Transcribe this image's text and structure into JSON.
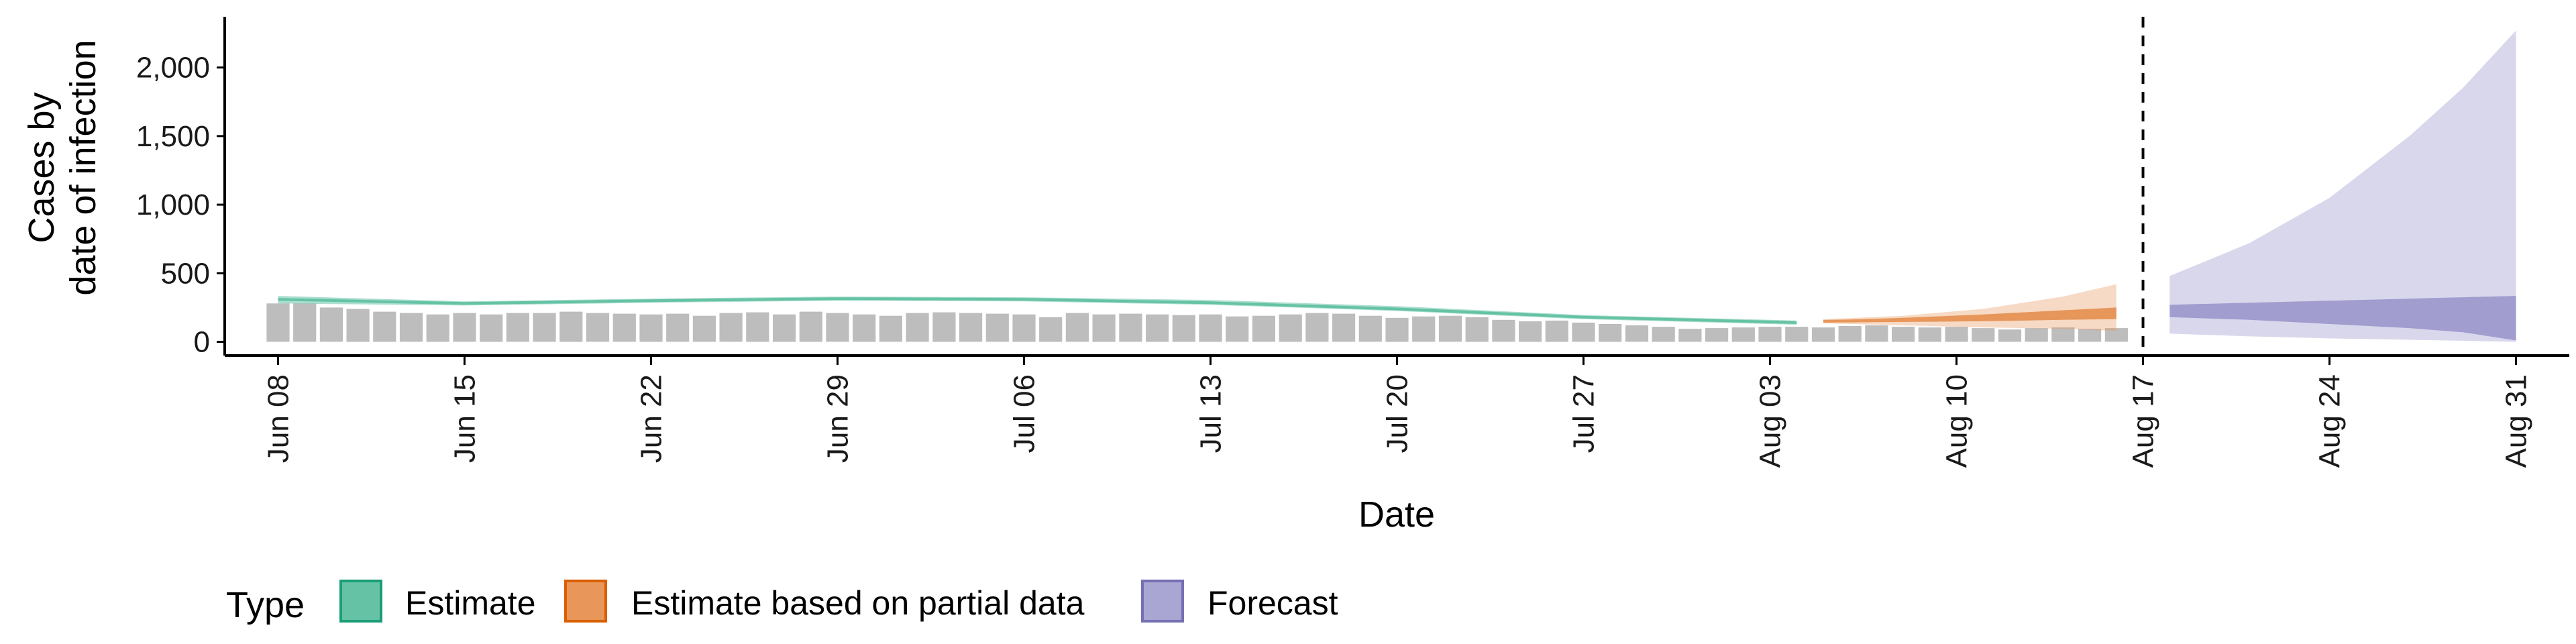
{
  "chart_data": {
    "type": "area",
    "xlabel": "Date",
    "ylabel_lines": [
      "Cases by",
      "date of infection"
    ],
    "x_ticks": [
      "Jun 08",
      "Jun 15",
      "Jun 22",
      "Jun 29",
      "Jul 06",
      "Jul 13",
      "Jul 20",
      "Jul 27",
      "Aug 03",
      "Aug 10",
      "Aug 17",
      "Aug 24",
      "Aug 31"
    ],
    "x_range": [
      "2020-06-06",
      "2020-09-02"
    ],
    "y_ticks": [
      "0",
      "500",
      "1,000",
      "1,500",
      "2,000"
    ],
    "ylim": [
      -100,
      2370
    ],
    "vline_date": "2020-08-17",
    "legend": {
      "title": "Type",
      "position": "bottom",
      "items": [
        {
          "label": "Estimate",
          "fill": "#66c2a5",
          "stroke": "#1b9e77"
        },
        {
          "label": "Estimate based on partial data",
          "fill": "#e9965a",
          "stroke": "#d95f02"
        },
        {
          "label": "Forecast",
          "fill": "#a9a6d4",
          "stroke": "#7570b3"
        }
      ]
    },
    "bars": {
      "color": "#bdbdbd",
      "start": "2020-06-08",
      "values": [
        280,
        280,
        250,
        240,
        220,
        210,
        200,
        210,
        200,
        210,
        210,
        220,
        210,
        205,
        200,
        205,
        190,
        210,
        215,
        200,
        220,
        210,
        200,
        190,
        210,
        215,
        210,
        205,
        200,
        180,
        210,
        200,
        205,
        200,
        195,
        200,
        185,
        190,
        200,
        210,
        205,
        190,
        175,
        185,
        190,
        180,
        160,
        150,
        155,
        140,
        130,
        120,
        110,
        95,
        100,
        105,
        110,
        110,
        105,
        115,
        120,
        110,
        105,
        110,
        100,
        90,
        100,
        105,
        95,
        100
      ]
    },
    "estimate": {
      "start": "2020-06-08",
      "end": "2020-08-04",
      "dates": [
        "2020-06-08",
        "2020-06-15",
        "2020-06-22",
        "2020-06-29",
        "2020-07-06",
        "2020-07-13",
        "2020-07-20",
        "2020-07-27",
        "2020-08-04"
      ],
      "median": [
        310,
        280,
        300,
        315,
        310,
        285,
        240,
        180,
        140
      ],
      "upper": [
        335,
        295,
        315,
        330,
        325,
        305,
        260,
        195,
        155
      ],
      "lower": [
        280,
        265,
        285,
        300,
        295,
        270,
        225,
        165,
        125
      ]
    },
    "partial": {
      "start": "2020-08-05",
      "end": "2020-08-16",
      "dates": [
        "2020-08-05",
        "2020-08-08",
        "2020-08-11",
        "2020-08-14",
        "2020-08-16"
      ],
      "median": [
        150,
        160,
        175,
        195,
        205
      ],
      "outer_upper": [
        165,
        190,
        240,
        330,
        420
      ],
      "outer_lower": [
        135,
        120,
        105,
        95,
        80
      ],
      "inner_upper": [
        155,
        175,
        200,
        230,
        250
      ],
      "inner_lower": [
        140,
        145,
        150,
        160,
        165
      ]
    },
    "forecast": {
      "start": "2020-08-18",
      "end": "2020-08-31",
      "dates": [
        "2020-08-18",
        "2020-08-21",
        "2020-08-24",
        "2020-08-27",
        "2020-08-29",
        "2020-08-31"
      ],
      "outer_upper": [
        480,
        720,
        1050,
        1500,
        1850,
        2270
      ],
      "outer_lower": [
        60,
        40,
        25,
        15,
        8,
        0
      ],
      "inner_upper": [
        270,
        285,
        300,
        315,
        325,
        335
      ],
      "inner_lower": [
        180,
        160,
        130,
        100,
        70,
        10
      ]
    }
  }
}
